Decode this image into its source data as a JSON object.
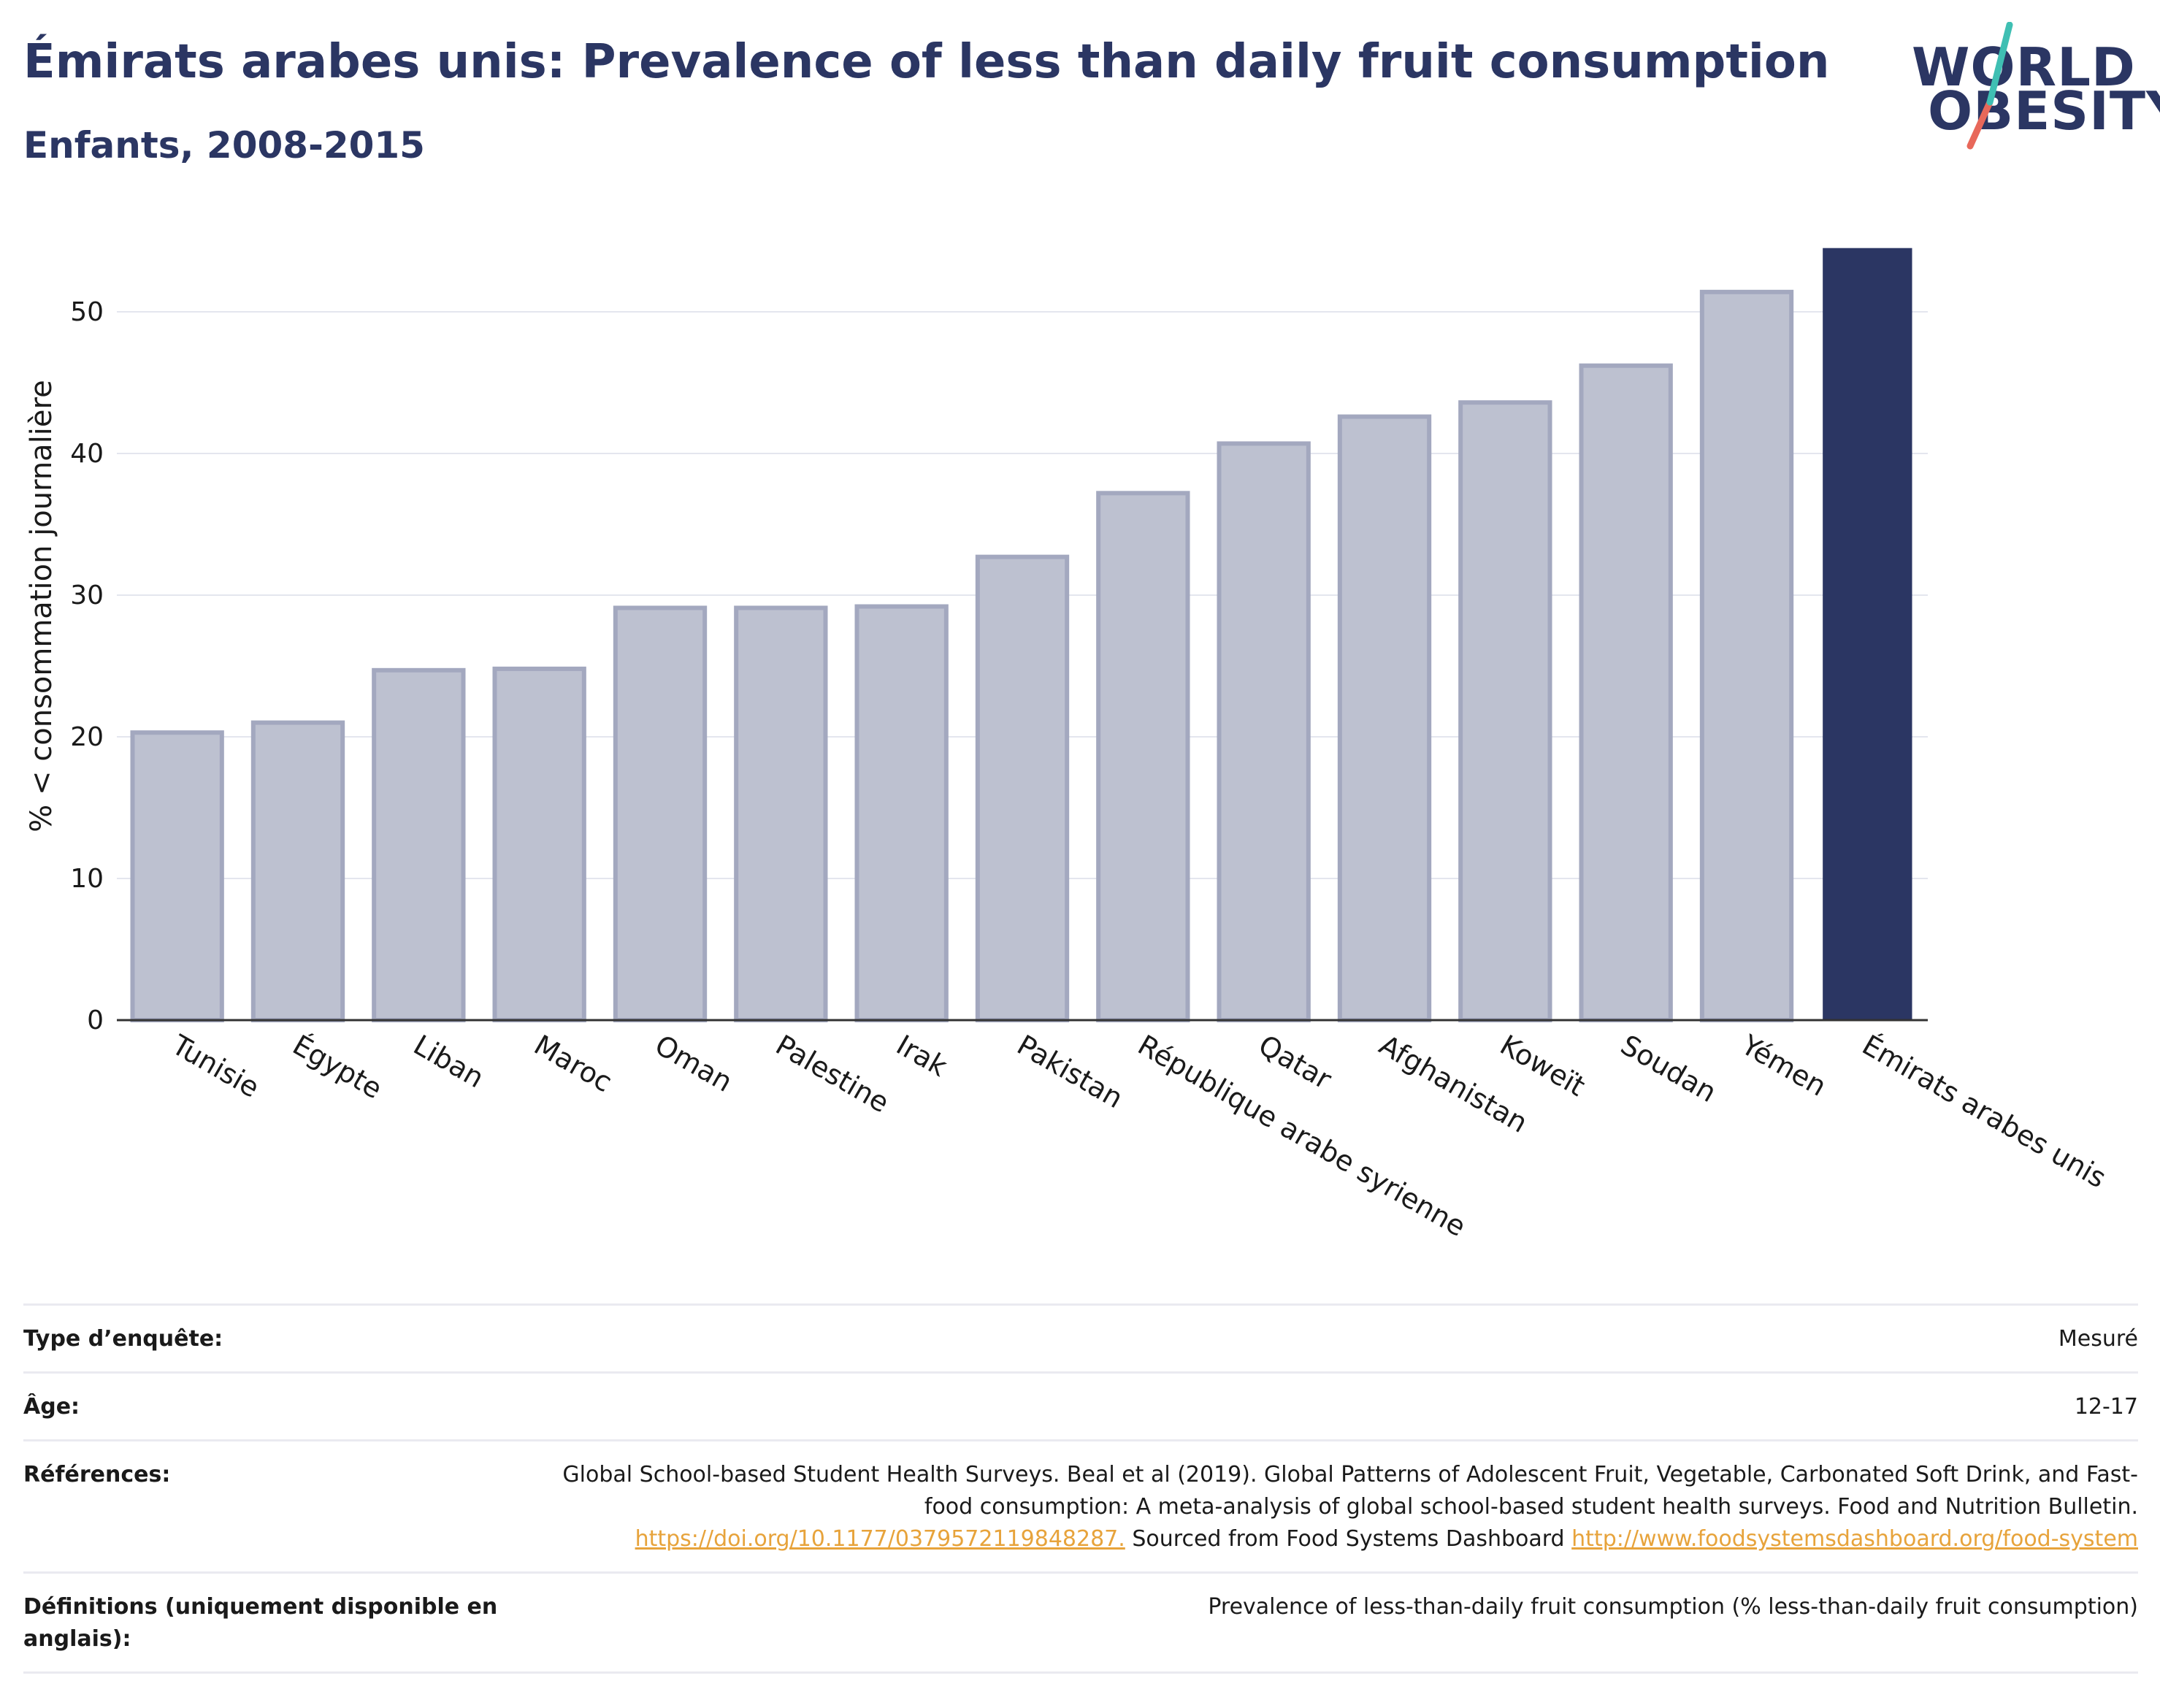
{
  "header": {
    "title": "Émirats arabes unis: Prevalence of less than daily fruit consumption",
    "subtitle": "Enfants, 2008-2015"
  },
  "logo": {
    "line1": "WORLD",
    "line2": "OBESITY",
    "accent_colors": [
      "#3fbfb3",
      "#e8685a"
    ]
  },
  "chart_data": {
    "type": "bar",
    "title": "Émirats arabes unis: Prevalence of less than daily fruit consumption",
    "subtitle": "Enfants, 2008-2015",
    "xlabel": "",
    "ylabel": "% < consommation journalière",
    "ylim": [
      0,
      55
    ],
    "yticks": [
      0,
      10,
      20,
      30,
      40,
      50
    ],
    "grid": true,
    "categories": [
      "Tunisie",
      "Égypte",
      "Liban",
      "Maroc",
      "Oman",
      "Palestine",
      "Irak",
      "Pakistan",
      "République arabe syrienne",
      "Qatar",
      "Afghanistan",
      "Koweït",
      "Soudan",
      "Yémen",
      "Émirats arabes unis"
    ],
    "values": [
      20.3,
      21.0,
      24.7,
      24.8,
      29.1,
      29.1,
      29.2,
      32.7,
      37.2,
      40.7,
      42.6,
      43.6,
      46.2,
      51.4,
      54.5
    ],
    "highlight": "Émirats arabes unis",
    "colors": {
      "highlight": "#2b3663",
      "other_fill": "#bdc1d0",
      "other_stroke": "#a3a8bf"
    }
  },
  "info": {
    "rows": [
      {
        "key": "Type d’enquête:",
        "value": "Mesuré"
      },
      {
        "key": "Âge:",
        "value": "12-17"
      },
      {
        "key": "Références:",
        "value_parts": {
          "text1": "Global School-based Student Health Surveys. Beal et al (2019). Global Patterns of Adolescent Fruit, Vegetable, Carbonated Soft Drink, and Fast-food consumption: A meta-analysis of global school-based student health surveys. Food and Nutrition Bulletin.",
          "link1": "https://doi.org/10.1177/0379572119848287.",
          "text2": "Sourced from Food Systems Dashboard",
          "link2": "http://www.foodsystemsdashboard.org/food-system"
        }
      },
      {
        "key": "Définitions (uniquement disponible en anglais):",
        "value": "Prevalence of less-than-daily fruit consumption (% less-than-daily fruit consumption)"
      }
    ]
  }
}
